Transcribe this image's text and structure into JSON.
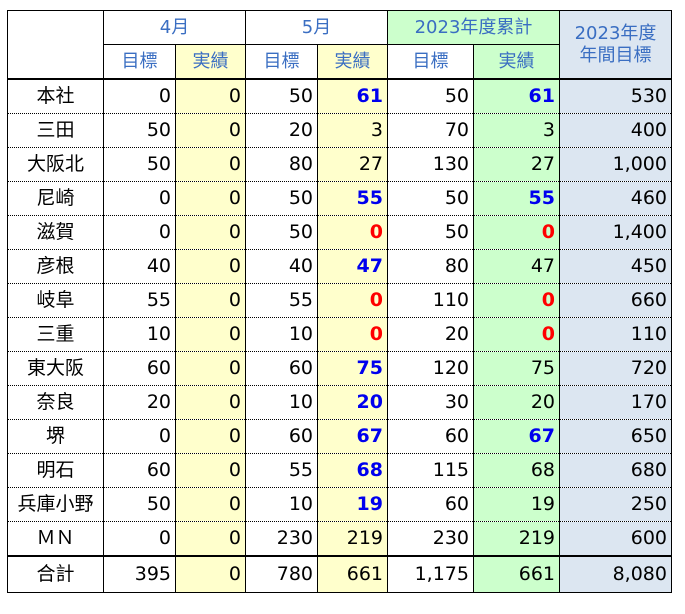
{
  "headers": {
    "april": "4月",
    "may": "5月",
    "cumulative": "2023年度累計",
    "annual_line1": "2023年度",
    "annual_line2": "年間目標",
    "target": "目標",
    "actual": "実績"
  },
  "rows": [
    {
      "name": "本社",
      "apr_t": "0",
      "apr_a": "0",
      "may_t": "50",
      "may_a": "61",
      "may_a_style": "blue",
      "cum_t": "50",
      "cum_a": "61",
      "cum_a_style": "blue",
      "annual": "530"
    },
    {
      "name": "三田",
      "apr_t": "50",
      "apr_a": "0",
      "may_t": "20",
      "may_a": "3",
      "may_a_style": "normal",
      "cum_t": "70",
      "cum_a": "3",
      "cum_a_style": "normal",
      "annual": "400"
    },
    {
      "name": "大阪北",
      "apr_t": "50",
      "apr_a": "0",
      "may_t": "80",
      "may_a": "27",
      "may_a_style": "normal",
      "cum_t": "130",
      "cum_a": "27",
      "cum_a_style": "normal",
      "annual": "1,000"
    },
    {
      "name": "尼崎",
      "apr_t": "0",
      "apr_a": "0",
      "may_t": "50",
      "may_a": "55",
      "may_a_style": "blue",
      "cum_t": "50",
      "cum_a": "55",
      "cum_a_style": "blue",
      "annual": "460"
    },
    {
      "name": "滋賀",
      "apr_t": "0",
      "apr_a": "0",
      "may_t": "50",
      "may_a": "0",
      "may_a_style": "red",
      "cum_t": "50",
      "cum_a": "0",
      "cum_a_style": "red",
      "annual": "1,400"
    },
    {
      "name": "彦根",
      "apr_t": "40",
      "apr_a": "0",
      "may_t": "40",
      "may_a": "47",
      "may_a_style": "blue",
      "cum_t": "80",
      "cum_a": "47",
      "cum_a_style": "normal",
      "annual": "450"
    },
    {
      "name": "岐阜",
      "apr_t": "55",
      "apr_a": "0",
      "may_t": "55",
      "may_a": "0",
      "may_a_style": "red",
      "cum_t": "110",
      "cum_a": "0",
      "cum_a_style": "red",
      "annual": "660"
    },
    {
      "name": "三重",
      "apr_t": "10",
      "apr_a": "0",
      "may_t": "10",
      "may_a": "0",
      "may_a_style": "red",
      "cum_t": "20",
      "cum_a": "0",
      "cum_a_style": "red",
      "annual": "110"
    },
    {
      "name": "東大阪",
      "apr_t": "60",
      "apr_a": "0",
      "may_t": "60",
      "may_a": "75",
      "may_a_style": "blue",
      "cum_t": "120",
      "cum_a": "75",
      "cum_a_style": "normal",
      "annual": "720"
    },
    {
      "name": "奈良",
      "apr_t": "20",
      "apr_a": "0",
      "may_t": "10",
      "may_a": "20",
      "may_a_style": "blue",
      "cum_t": "30",
      "cum_a": "20",
      "cum_a_style": "normal",
      "annual": "170"
    },
    {
      "name": "堺",
      "apr_t": "0",
      "apr_a": "0",
      "may_t": "60",
      "may_a": "67",
      "may_a_style": "blue",
      "cum_t": "60",
      "cum_a": "67",
      "cum_a_style": "blue",
      "annual": "650"
    },
    {
      "name": "明石",
      "apr_t": "60",
      "apr_a": "0",
      "may_t": "55",
      "may_a": "68",
      "may_a_style": "blue",
      "cum_t": "115",
      "cum_a": "68",
      "cum_a_style": "normal",
      "annual": "680"
    },
    {
      "name": "兵庫小野",
      "apr_t": "50",
      "apr_a": "0",
      "may_t": "10",
      "may_a": "19",
      "may_a_style": "blue",
      "cum_t": "60",
      "cum_a": "19",
      "cum_a_style": "normal",
      "annual": "250"
    },
    {
      "name": "ＭＮ",
      "apr_t": "0",
      "apr_a": "0",
      "may_t": "230",
      "may_a": "219",
      "may_a_style": "normal",
      "cum_t": "230",
      "cum_a": "219",
      "cum_a_style": "normal",
      "annual": "600"
    }
  ],
  "total": {
    "name": "合計",
    "apr_t": "395",
    "apr_a": "0",
    "may_t": "780",
    "may_a": "661",
    "cum_t": "1,175",
    "cum_a": "661",
    "annual": "8,080"
  },
  "colors": {
    "header_text": "#3a6ec2",
    "actual_fill": "#ffffcc",
    "cumulative_fill": "#ccffcc",
    "annual_fill": "#dce6f1",
    "over_target": "#0000ee",
    "zero_alert": "#ff0000"
  }
}
